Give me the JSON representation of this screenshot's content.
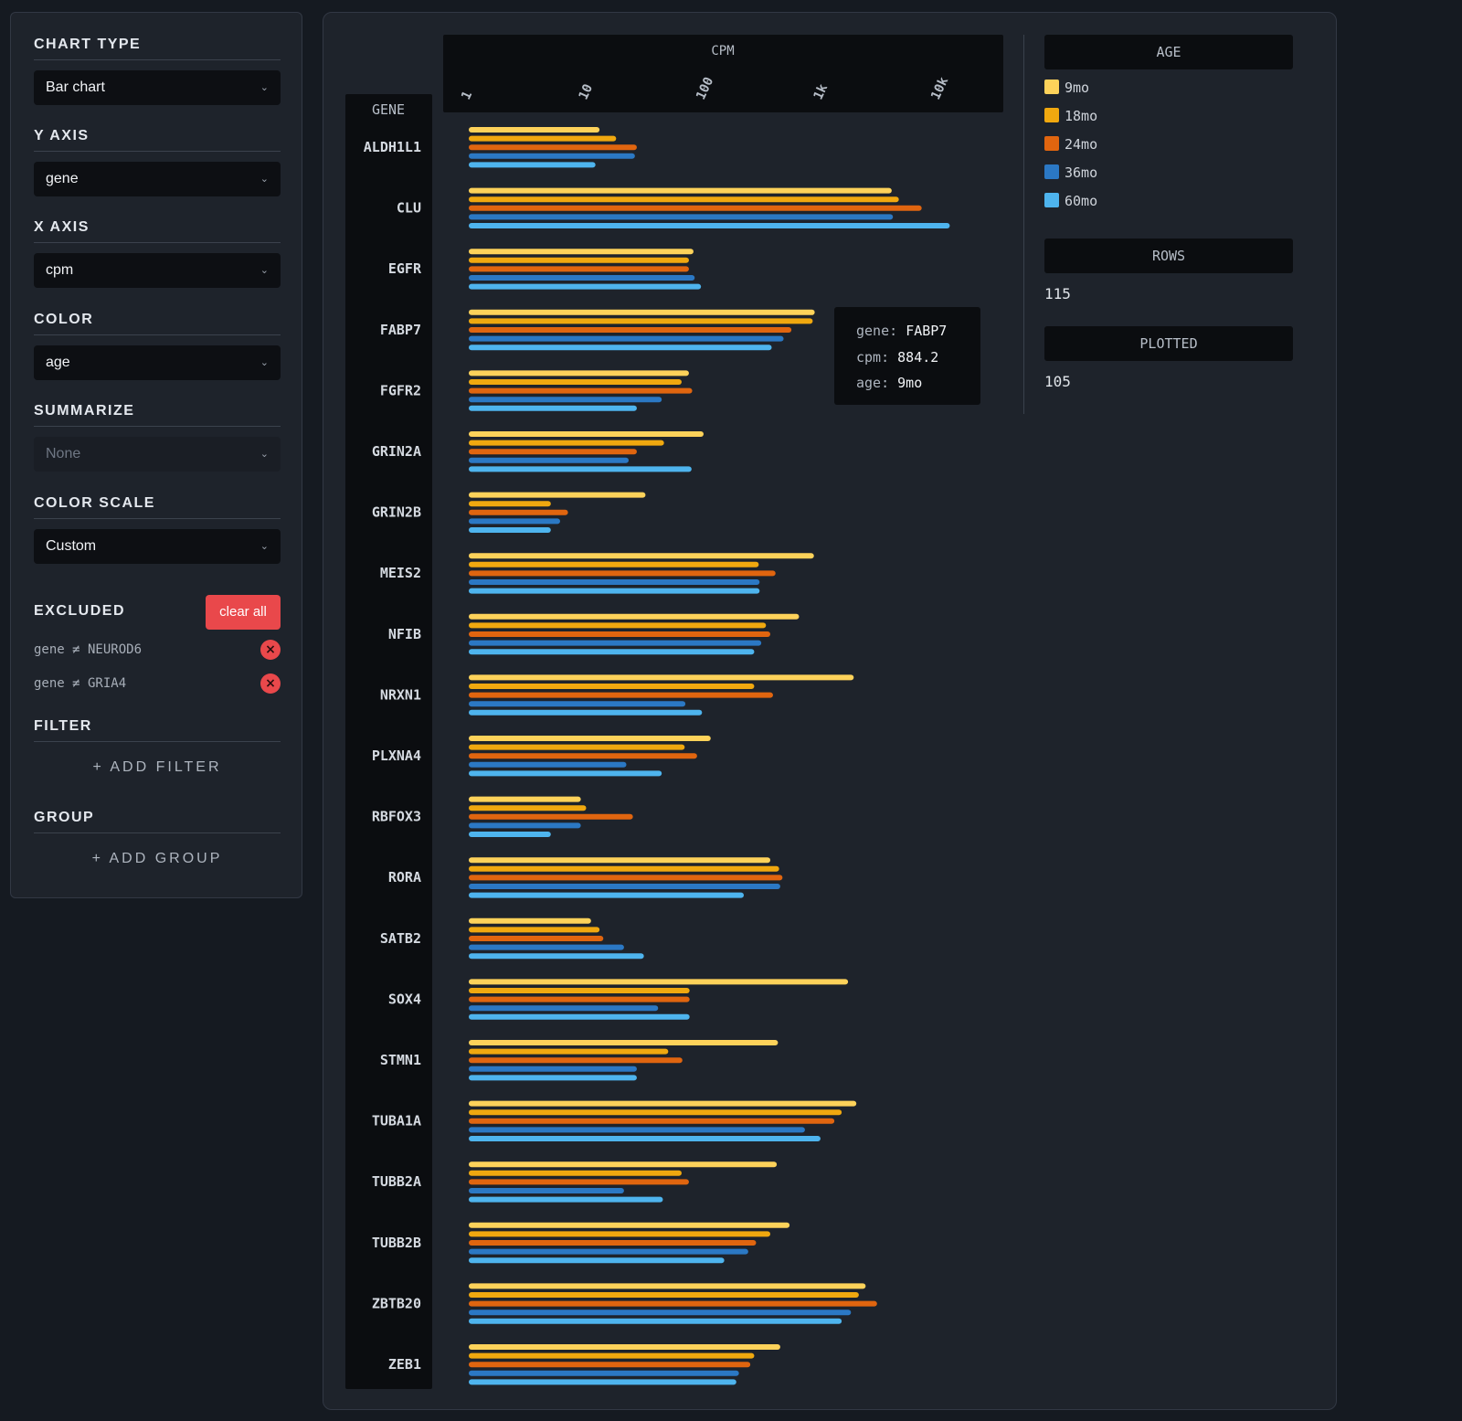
{
  "controls": {
    "chart_type": {
      "title": "CHART TYPE",
      "value": "Bar chart"
    },
    "y_axis": {
      "title": "Y AXIS",
      "value": "gene"
    },
    "x_axis": {
      "title": "X AXIS",
      "value": "cpm"
    },
    "color": {
      "title": "COLOR",
      "value": "age"
    },
    "summarize": {
      "title": "SUMMARIZE",
      "value": "None"
    },
    "color_scale": {
      "title": "COLOR SCALE",
      "value": "Custom"
    },
    "excluded": {
      "title": "EXCLUDED",
      "clear_label": "clear all",
      "items": [
        {
          "label": "gene ≠ NEUROD6"
        },
        {
          "label": "gene ≠ GRIA4"
        }
      ]
    },
    "filter": {
      "title": "FILTER",
      "add_label": "+ ADD FILTER"
    },
    "group": {
      "title": "GROUP",
      "add_label": "+ ADD GROUP"
    }
  },
  "legend": {
    "title": "AGE",
    "rows_label": "ROWS",
    "rows_value": "115",
    "plotted_label": "PLOTTED",
    "plotted_value": "105"
  },
  "tooltip": {
    "gene_key": "gene:",
    "gene_val": "FABP7",
    "cpm_key": "cpm:",
    "cpm_val": "884.2",
    "age_key": "age:",
    "age_val": "9mo"
  },
  "chart_data": {
    "type": "bar",
    "orientation": "horizontal",
    "xlabel": "CPM",
    "ylabel": "GENE",
    "xscale": "log",
    "xlim": [
      1,
      20000
    ],
    "xticks": [
      "1",
      "10",
      "100",
      "1k",
      "10k"
    ],
    "xtick_values": [
      1,
      10,
      100,
      1000,
      10000
    ],
    "categories": [
      "ALDH1L1",
      "CLU",
      "EGFR",
      "FABP7",
      "FGFR2",
      "GRIN2A",
      "GRIN2B",
      "MEIS2",
      "NFIB",
      "NRXN1",
      "PLXNA4",
      "RBFOX3",
      "RORA",
      "SATB2",
      "SOX4",
      "STMN1",
      "TUBA1A",
      "TUBB2A",
      "TUBB2B",
      "ZBTB20",
      "ZEB1"
    ],
    "series": [
      {
        "name": "9mo",
        "color": "#fdd25a",
        "values": [
          13,
          4000,
          82,
          884,
          75,
          100,
          32,
          870,
          650,
          1900,
          115,
          9,
          370,
          11,
          1700,
          430,
          2000,
          420,
          540,
          2400,
          450
        ]
      },
      {
        "name": "18mo",
        "color": "#f0a80f",
        "values": [
          18,
          4600,
          75,
          850,
          65,
          46,
          5,
          295,
          340,
          270,
          69,
          10,
          440,
          13,
          76,
          50,
          1500,
          65,
          370,
          2100,
          270
        ]
      },
      {
        "name": "24mo",
        "color": "#e0650f",
        "values": [
          27,
          7200,
          75,
          560,
          80,
          27,
          7,
          410,
          370,
          390,
          88,
          25,
          470,
          14,
          76,
          66,
          1300,
          75,
          280,
          3000,
          250
        ]
      },
      {
        "name": "36mo",
        "color": "#2b78c4",
        "values": [
          26,
          4100,
          84,
          480,
          44,
          23,
          6,
          300,
          310,
          70,
          22,
          9,
          450,
          21,
          41,
          27,
          730,
          21,
          240,
          1800,
          200
        ]
      },
      {
        "name": "60mo",
        "color": "#4eb4ee",
        "values": [
          12,
          12500,
          95,
          380,
          27,
          79,
          5,
          300,
          270,
          97,
          44,
          5,
          220,
          31,
          76,
          27,
          990,
          45,
          150,
          1500,
          190
        ]
      }
    ]
  }
}
